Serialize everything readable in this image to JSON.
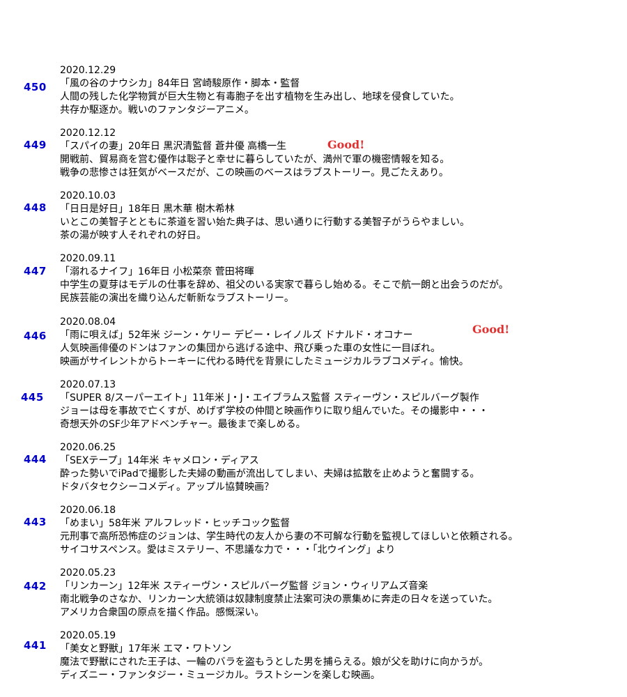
{
  "entries": [
    {
      "number": "450",
      "date": "2020.12.29",
      "title": "「風の谷のナウシカ」84年日 宮崎駿原作・脚本・監督",
      "description_1": "人間の残した化学物質が巨大生物と有毒胞子を出す植物を生み出し、地球を侵食していた。",
      "description_2": "共存か駆逐か。戦いのファンタジーアニメ。",
      "badge": ""
    },
    {
      "number": "449",
      "date": "2020.12.12",
      "title": "「スパイの妻」20年日 黒沢清監督 蒼井優 高橋一生",
      "description_1": "開戦前、貿易商を営む優作は聡子と幸せに暮らしていたが、満州で軍の機密情報を知る。",
      "description_2": "戦争の悲惨さは狂気がベースだが、この映画のベースはラブストーリー。見ごたえあり。",
      "badge": "Good!"
    },
    {
      "number": "448",
      "date": "2020.10.03",
      "title": "「日日是好日」18年日 黒木華 樹木希林",
      "description_1": "いとこの美智子とともに茶道を習い始た典子は、思い通りに行動する美智子がうらやましい。",
      "description_2": "茶の湯が映す人それぞれの好日。",
      "badge": ""
    },
    {
      "number": "447",
      "date": "2020.09.11",
      "title": "「溺れるナイフ」16年日 小松菜奈 菅田将暉",
      "description_1": "中学生の夏芽はモデルの仕事を辞め、祖父のいる実家で暮らし始める。そこで航一朗と出会うのだが。",
      "description_2": "民族芸能の演出を織り込んだ斬新なラブストーリー。",
      "badge": ""
    },
    {
      "number": "446",
      "date": "2020.08.04",
      "title": "「雨に唄えば」52年米 ジーン・ケリー デビー・レイノルズ ドナルド・オコナー",
      "description_1": "人気映画俳優のドンはファンの集団から逃げる途中、飛び乗った車の女性に一目ぼれ。",
      "description_2": "映画がサイレントからトーキーに代わる時代を背景にしたミュージカルラブコメディ。愉快。",
      "badge": "Good!"
    },
    {
      "number": "445",
      "date": "2020.07.13",
      "title": "「SUPER 8/スーパーエイト」11年米 J・J・エイブラムス監督 スティーヴン・スピルバーグ製作",
      "description_1": "ジョーは母を事故で亡くすが、めげず学校の仲間と映画作りに取り組んでいた。その撮影中・・・",
      "description_2": "奇想天外のSF少年アドベンチャー。最後まで楽しめる。",
      "badge": ""
    },
    {
      "number": "444",
      "date": "2020.06.25",
      "title": "「SEXテープ」14年米 キャメロン・ディアス",
      "description_1": "酔った勢いでiPadで撮影した夫婦の動画が流出してしまい、夫婦は拡散を止めようと奮闘する。",
      "description_2": "ドタバタセクシーコメディ。アップル協賛映画？",
      "badge": ""
    },
    {
      "number": "443",
      "date": "2020.06.18",
      "title": "「めまい」58年米 アルフレッド・ヒッチコック監督",
      "description_1": "元刑事で高所恐怖症のジョンは、学生時代の友人から妻の不可解な行動を監視してほしいと依頼される。",
      "description_2": "サイコサスペンス。愛はミステリー、不思議な力で・・・「北ウイング」より",
      "badge": ""
    },
    {
      "number": "442",
      "date": "2020.05.23",
      "title": "「リンカーン」12年米 スティーヴン・スピルバーグ監督 ジョン・ウィリアムズ音楽",
      "description_1": "南北戦争のさなか、リンカーン大統領は奴隷制度禁止法案可決の票集めに奔走の日々を送っていた。",
      "description_2": "アメリカ合衆国の原点を描く作品。感慨深い。",
      "badge": ""
    },
    {
      "number": "441",
      "date": "2020.05.19",
      "title": "「美女と野獣」17年米 エマ・ワトソン",
      "description_1": "魔法で野獣にされた王子は、一輪のバラを盗もうとした男を捕らえる。娘が父を助けに向かうが。",
      "description_2": "ディズニー・ファンタジー・ミュージカル。ラストシーンを楽しむ映画。",
      "badge": ""
    }
  ]
}
